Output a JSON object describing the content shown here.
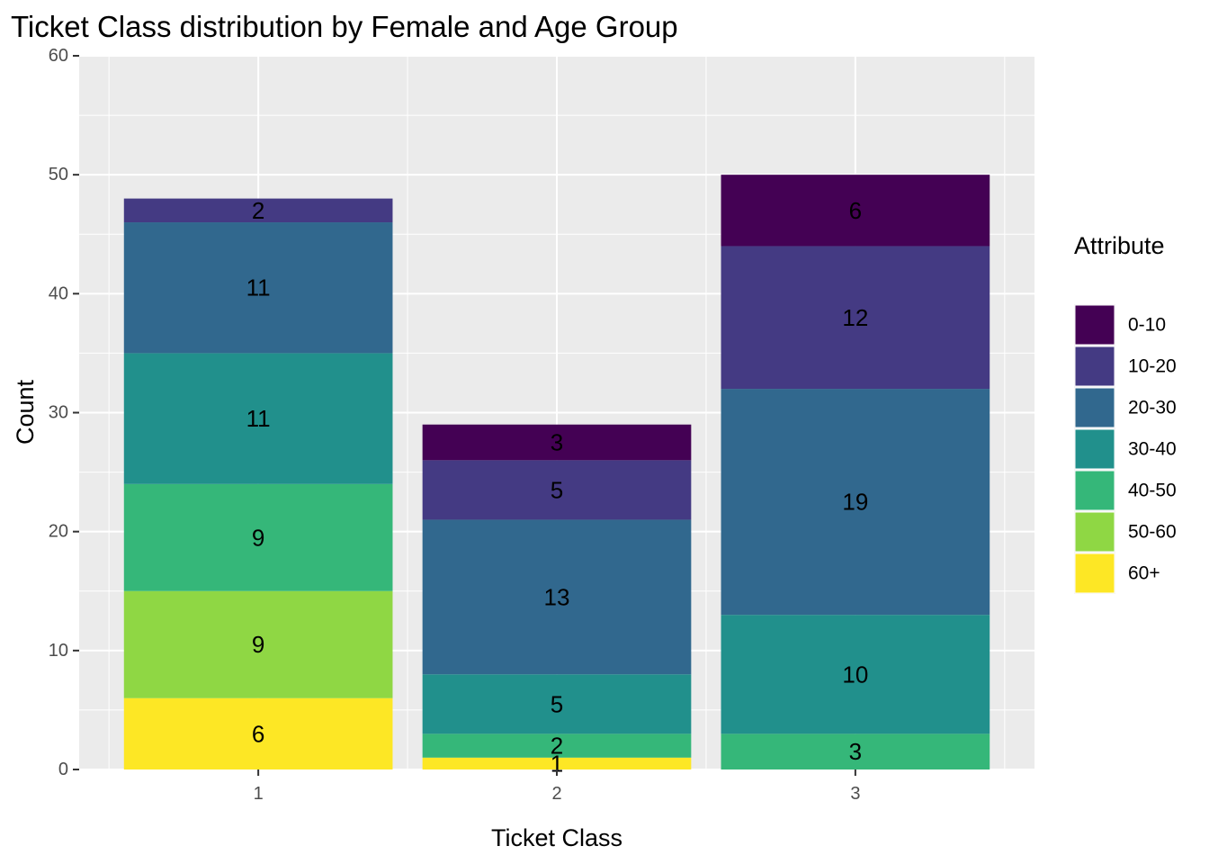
{
  "chart_data": {
    "type": "bar",
    "stacked": true,
    "title": "Ticket Class distribution by Female and Age Group",
    "xlabel": "Ticket Class",
    "ylabel": "Count",
    "categories": [
      "1",
      "2",
      "3"
    ],
    "ylim": [
      0,
      60
    ],
    "yticks": [
      0,
      10,
      20,
      30,
      40,
      50,
      60
    ],
    "grid": true,
    "legend_title": "Attribute",
    "legend_position": "right",
    "series": [
      {
        "name": "0-10",
        "color": "#440154",
        "values": [
          0,
          3,
          6
        ]
      },
      {
        "name": "10-20",
        "color": "#443A83",
        "values": [
          2,
          5,
          12
        ]
      },
      {
        "name": "20-30",
        "color": "#31688E",
        "values": [
          11,
          13,
          19
        ]
      },
      {
        "name": "30-40",
        "color": "#21908C",
        "values": [
          11,
          5,
          10
        ]
      },
      {
        "name": "40-50",
        "color": "#35B779",
        "values": [
          9,
          2,
          3
        ]
      },
      {
        "name": "50-60",
        "color": "#8FD744",
        "values": [
          9,
          0,
          0
        ]
      },
      {
        "name": "60+",
        "color": "#FDE725",
        "values": [
          6,
          1,
          0
        ]
      }
    ]
  }
}
